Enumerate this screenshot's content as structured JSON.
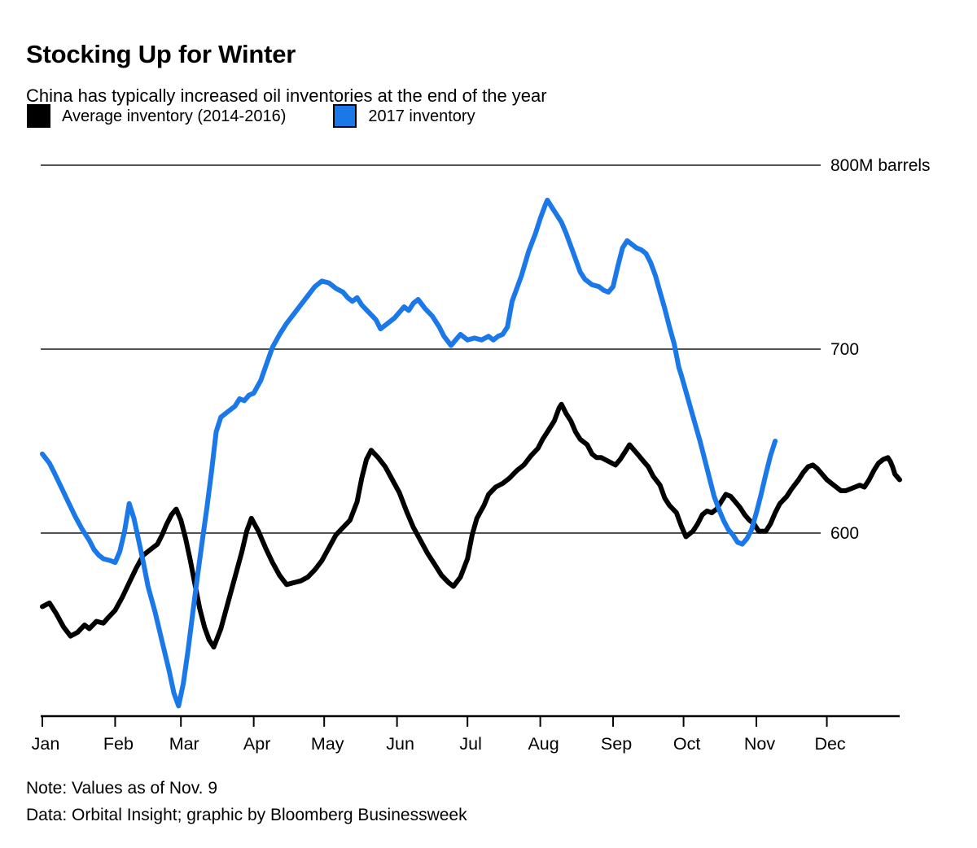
{
  "header": {
    "title": "Stocking Up for Winter",
    "subtitle": "China has typically increased oil inventories at the end of the year"
  },
  "legend": {
    "items": [
      {
        "label": "Average inventory (2014-2016)",
        "color": "#000000"
      },
      {
        "label": "2017 inventory",
        "color": "#1b78e8"
      }
    ]
  },
  "chart_data": {
    "type": "line",
    "title": "Stocking Up for Winter",
    "subtitle": "China has typically increased oil inventories at the end of the year",
    "unit": "M barrels",
    "x_axis": {
      "months": [
        "Jan",
        "Feb",
        "Mar",
        "Apr",
        "May",
        "Jun",
        "Jul",
        "Aug",
        "Sep",
        "Oct",
        "Nov",
        "Dec"
      ],
      "month_start_days": [
        0,
        31,
        59,
        90,
        120,
        151,
        181,
        212,
        243,
        273,
        304,
        334
      ],
      "days_in_year": 365
    },
    "y_axis": {
      "gridlines": [
        {
          "value": 800,
          "label": "800M barrels"
        },
        {
          "value": 700,
          "label": "700"
        },
        {
          "value": 600,
          "label": "600"
        }
      ],
      "bottom_value": 500,
      "grid_on": true
    },
    "legend_position": "top-left",
    "series": [
      {
        "name": "Average inventory (2014-2016)",
        "color": "#000000",
        "points": [
          [
            0,
            560
          ],
          [
            3,
            562
          ],
          [
            6,
            556
          ],
          [
            9,
            549
          ],
          [
            12,
            544
          ],
          [
            15,
            546
          ],
          [
            18,
            550
          ],
          [
            20,
            548
          ],
          [
            23,
            552
          ],
          [
            26,
            551
          ],
          [
            28,
            554
          ],
          [
            31,
            558
          ],
          [
            34,
            565
          ],
          [
            37,
            573
          ],
          [
            40,
            581
          ],
          [
            43,
            588
          ],
          [
            46,
            591
          ],
          [
            49,
            594
          ],
          [
            51,
            599
          ],
          [
            53,
            605
          ],
          [
            55,
            610
          ],
          [
            57,
            613
          ],
          [
            59,
            607
          ],
          [
            61,
            597
          ],
          [
            63,
            585
          ],
          [
            65,
            572
          ],
          [
            67,
            559
          ],
          [
            69,
            549
          ],
          [
            71,
            542
          ],
          [
            73,
            538
          ],
          [
            76,
            548
          ],
          [
            79,
            562
          ],
          [
            82,
            576
          ],
          [
            85,
            590
          ],
          [
            87,
            601
          ],
          [
            89,
            608
          ],
          [
            92,
            601
          ],
          [
            95,
            592
          ],
          [
            98,
            584
          ],
          [
            101,
            577
          ],
          [
            104,
            572
          ],
          [
            107,
            573
          ],
          [
            110,
            574
          ],
          [
            113,
            576
          ],
          [
            116,
            580
          ],
          [
            119,
            585
          ],
          [
            122,
            592
          ],
          [
            125,
            599
          ],
          [
            128,
            603
          ],
          [
            131,
            607
          ],
          [
            134,
            617
          ],
          [
            136,
            630
          ],
          [
            138,
            640
          ],
          [
            140,
            645
          ],
          [
            143,
            641
          ],
          [
            146,
            636
          ],
          [
            149,
            629
          ],
          [
            152,
            622
          ],
          [
            155,
            612
          ],
          [
            158,
            603
          ],
          [
            161,
            596
          ],
          [
            164,
            589
          ],
          [
            167,
            583
          ],
          [
            170,
            577
          ],
          [
            173,
            573
          ],
          [
            175,
            571
          ],
          [
            178,
            576
          ],
          [
            181,
            586
          ],
          [
            183,
            599
          ],
          [
            185,
            608
          ],
          [
            188,
            615
          ],
          [
            190,
            621
          ],
          [
            193,
            625
          ],
          [
            196,
            627
          ],
          [
            199,
            630
          ],
          [
            202,
            634
          ],
          [
            205,
            637
          ],
          [
            208,
            642
          ],
          [
            211,
            646
          ],
          [
            213,
            651
          ],
          [
            215,
            655
          ],
          [
            218,
            661
          ],
          [
            220,
            668
          ],
          [
            221,
            670
          ],
          [
            223,
            665
          ],
          [
            225,
            661
          ],
          [
            227,
            655
          ],
          [
            229,
            651
          ],
          [
            232,
            648
          ],
          [
            234,
            643
          ],
          [
            236,
            641
          ],
          [
            238,
            641
          ],
          [
            241,
            639
          ],
          [
            244,
            637
          ],
          [
            246,
            640
          ],
          [
            248,
            644
          ],
          [
            250,
            648
          ],
          [
            252,
            645
          ],
          [
            254,
            642
          ],
          [
            256,
            639
          ],
          [
            258,
            636
          ],
          [
            260,
            631
          ],
          [
            263,
            626
          ],
          [
            265,
            619
          ],
          [
            267,
            615
          ],
          [
            270,
            611
          ],
          [
            272,
            604
          ],
          [
            274,
            598
          ],
          [
            277,
            601
          ],
          [
            279,
            605
          ],
          [
            281,
            610
          ],
          [
            283,
            612
          ],
          [
            285,
            611
          ],
          [
            287,
            613
          ],
          [
            289,
            617
          ],
          [
            291,
            621
          ],
          [
            293,
            620
          ],
          [
            295,
            617
          ],
          [
            297,
            614
          ],
          [
            299,
            610
          ],
          [
            301,
            607
          ],
          [
            303,
            605
          ],
          [
            305,
            601
          ],
          [
            308,
            601
          ],
          [
            310,
            605
          ],
          [
            312,
            611
          ],
          [
            314,
            616
          ],
          [
            317,
            620
          ],
          [
            319,
            624
          ],
          [
            322,
            629
          ],
          [
            324,
            633
          ],
          [
            326,
            636
          ],
          [
            328,
            637
          ],
          [
            330,
            635
          ],
          [
            332,
            632
          ],
          [
            334,
            629
          ],
          [
            336,
            627
          ],
          [
            338,
            625
          ],
          [
            340,
            623
          ],
          [
            342,
            623
          ],
          [
            344,
            624
          ],
          [
            346,
            625
          ],
          [
            348,
            626
          ],
          [
            350,
            625
          ],
          [
            352,
            629
          ],
          [
            354,
            634
          ],
          [
            356,
            638
          ],
          [
            358,
            640
          ],
          [
            360,
            641
          ],
          [
            361,
            639
          ],
          [
            362,
            636
          ],
          [
            363,
            632
          ],
          [
            365,
            629
          ]
        ]
      },
      {
        "name": "2017 inventory",
        "color": "#1b78e8",
        "points": [
          [
            0,
            643
          ],
          [
            3,
            638
          ],
          [
            5,
            633
          ],
          [
            8,
            625
          ],
          [
            11,
            617
          ],
          [
            14,
            609
          ],
          [
            17,
            602
          ],
          [
            20,
            596
          ],
          [
            22,
            591
          ],
          [
            24,
            588
          ],
          [
            26,
            586
          ],
          [
            29,
            585
          ],
          [
            31,
            584
          ],
          [
            33,
            590
          ],
          [
            35,
            601
          ],
          [
            37,
            616
          ],
          [
            39,
            608
          ],
          [
            41,
            596
          ],
          [
            43,
            584
          ],
          [
            45,
            571
          ],
          [
            48,
            557
          ],
          [
            51,
            541
          ],
          [
            54,
            525
          ],
          [
            56,
            513
          ],
          [
            58,
            506
          ],
          [
            60,
            518
          ],
          [
            62,
            536
          ],
          [
            64,
            556
          ],
          [
            66,
            576
          ],
          [
            68,
            595
          ],
          [
            70,
            613
          ],
          [
            72,
            633
          ],
          [
            74,
            655
          ],
          [
            76,
            663
          ],
          [
            79,
            666
          ],
          [
            82,
            669
          ],
          [
            84,
            673
          ],
          [
            86,
            672
          ],
          [
            88,
            675
          ],
          [
            90,
            676
          ],
          [
            93,
            683
          ],
          [
            96,
            694
          ],
          [
            98,
            701
          ],
          [
            101,
            708
          ],
          [
            104,
            714
          ],
          [
            107,
            719
          ],
          [
            110,
            724
          ],
          [
            113,
            729
          ],
          [
            116,
            734
          ],
          [
            119,
            737
          ],
          [
            122,
            736
          ],
          [
            125,
            733
          ],
          [
            128,
            731
          ],
          [
            130,
            728
          ],
          [
            132,
            726
          ],
          [
            134,
            728
          ],
          [
            136,
            724
          ],
          [
            139,
            720
          ],
          [
            142,
            716
          ],
          [
            144,
            711
          ],
          [
            147,
            714
          ],
          [
            150,
            717
          ],
          [
            152,
            720
          ],
          [
            154,
            723
          ],
          [
            156,
            721
          ],
          [
            158,
            725
          ],
          [
            160,
            727
          ],
          [
            163,
            722
          ],
          [
            166,
            718
          ],
          [
            169,
            712
          ],
          [
            171,
            707
          ],
          [
            174,
            702
          ],
          [
            176,
            705
          ],
          [
            178,
            708
          ],
          [
            181,
            705
          ],
          [
            184,
            706
          ],
          [
            187,
            705
          ],
          [
            190,
            707
          ],
          [
            192,
            705
          ],
          [
            194,
            707
          ],
          [
            196,
            708
          ],
          [
            198,
            712
          ],
          [
            200,
            726
          ],
          [
            202,
            733
          ],
          [
            204,
            740
          ],
          [
            207,
            753
          ],
          [
            210,
            763
          ],
          [
            212,
            771
          ],
          [
            214,
            778
          ],
          [
            215,
            781
          ],
          [
            217,
            777
          ],
          [
            219,
            773
          ],
          [
            221,
            769
          ],
          [
            223,
            763
          ],
          [
            225,
            756
          ],
          [
            227,
            749
          ],
          [
            229,
            742
          ],
          [
            231,
            738
          ],
          [
            234,
            735
          ],
          [
            237,
            734
          ],
          [
            239,
            732
          ],
          [
            241,
            731
          ],
          [
            243,
            734
          ],
          [
            245,
            745
          ],
          [
            247,
            755
          ],
          [
            249,
            759
          ],
          [
            251,
            757
          ],
          [
            253,
            755
          ],
          [
            255,
            754
          ],
          [
            257,
            752
          ],
          [
            259,
            747
          ],
          [
            261,
            740
          ],
          [
            263,
            731
          ],
          [
            265,
            722
          ],
          [
            267,
            712
          ],
          [
            269,
            703
          ],
          [
            271,
            690
          ],
          [
            272,
            686
          ],
          [
            274,
            677
          ],
          [
            276,
            668
          ],
          [
            278,
            659
          ],
          [
            280,
            650
          ],
          [
            282,
            640
          ],
          [
            284,
            630
          ],
          [
            286,
            620
          ],
          [
            288,
            613
          ],
          [
            290,
            607
          ],
          [
            292,
            602
          ],
          [
            294,
            599
          ],
          [
            296,
            595
          ],
          [
            298,
            594
          ],
          [
            300,
            597
          ],
          [
            302,
            602
          ],
          [
            304,
            611
          ],
          [
            306,
            621
          ],
          [
            308,
            632
          ],
          [
            310,
            642
          ],
          [
            312,
            650
          ]
        ]
      }
    ]
  },
  "footer": {
    "note": "Note: Values as of Nov. 9",
    "source": "Data: Orbital Insight; graphic by Bloomberg Businessweek"
  }
}
